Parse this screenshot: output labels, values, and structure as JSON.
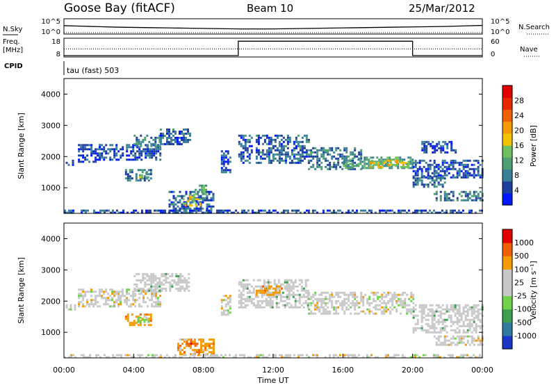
{
  "header": {
    "station": "Goose Bay (fitACF)",
    "beam": "Beam 10",
    "date": "25/Mar/2012"
  },
  "labels": {
    "nsky": "N.Sky",
    "nsearch": "N.Search",
    "freq": "Freq.",
    "mhz": "[MHz]",
    "nave": "Nave",
    "cpid": "CPID",
    "cpid_value": "tau (fast) 503",
    "slant_range": "Slant Range [km]",
    "time_ut": "Time UT",
    "power_label": "Power [dB]",
    "velocity_label": "Velocity [m s⁻¹]"
  },
  "strip": {
    "noise_ticks_left": [
      "10^5",
      "10^0"
    ],
    "noise_ticks_right": [
      "10^5",
      "10^0"
    ],
    "freq_ticks": [
      "18",
      "8"
    ],
    "nave_ticks": [
      "60",
      "0"
    ]
  },
  "colors": {
    "power": [
      "#0018ff",
      "#1e3f9e",
      "#3a7e9a",
      "#4e9e74",
      "#6fc060",
      "#f2c400",
      "#f39a00",
      "#f06000",
      "#e62800",
      "#e00000"
    ],
    "velocity": [
      "#e00000",
      "#f06000",
      "#f39a00",
      "#c8c8c8",
      "#c8c8c8",
      "#6fd24a",
      "#3c9e4e",
      "#2f7a9e",
      "#1a35c8"
    ]
  },
  "chart_data": [
    {
      "type": "line",
      "panel": "noise",
      "series": [
        {
          "name": "N.Sky",
          "x_hours": [
            0,
            1,
            2,
            3,
            4,
            5,
            6,
            7,
            8,
            9,
            10,
            11,
            12,
            13,
            14,
            15,
            16,
            17,
            18,
            19,
            20,
            21,
            22,
            23,
            24
          ],
          "values_log10": [
            2.8,
            2.6,
            2.4,
            2.2,
            2.1,
            2.0,
            1.9,
            1.8,
            1.7,
            1.6,
            1.5,
            1.5,
            1.5,
            1.6,
            1.7,
            1.8,
            1.9,
            2.0,
            2.1,
            2.2,
            2.3,
            2.4,
            2.5,
            2.7,
            2.9
          ]
        },
        {
          "name": "N.Search",
          "x_hours": [
            0,
            24
          ],
          "values_log10": [
            0,
            0
          ]
        }
      ],
      "ylim_log10": [
        0,
        5
      ]
    },
    {
      "type": "line",
      "panel": "freq_nave",
      "series": [
        {
          "name": "Freq.",
          "x_hours": [
            0,
            10,
            10,
            20,
            20,
            24
          ],
          "values": [
            8,
            8,
            17,
            17,
            8,
            8
          ]
        },
        {
          "name": "Nave",
          "x_hours": [
            0,
            24
          ],
          "values": [
            25,
            25
          ]
        }
      ],
      "freq_lim": [
        8,
        18
      ],
      "nave_lim": [
        0,
        60
      ]
    },
    {
      "type": "heatmap",
      "panel": "power",
      "xlabel": "",
      "ylabel": "Slant Range [km]",
      "xlim_hours": [
        0,
        24
      ],
      "ylim_km": [
        180,
        4500
      ],
      "y_ticks": [
        1000,
        2000,
        3000,
        4000
      ],
      "colorbar_label": "Power [dB]",
      "colorbar_ticks": [
        4,
        8,
        12,
        16,
        20,
        24,
        28
      ],
      "clim": [
        0,
        30
      ],
      "regions": [
        {
          "t0": 0.1,
          "t1": 0.6,
          "r0": 1700,
          "r1": 1900,
          "level": 3
        },
        {
          "t0": 0.8,
          "t1": 2.0,
          "r0": 1800,
          "r1": 2400,
          "level": 4
        },
        {
          "t0": 2.0,
          "t1": 5.5,
          "r0": 1900,
          "r1": 2400,
          "level": 5
        },
        {
          "t0": 4.0,
          "t1": 5.5,
          "r0": 2300,
          "r1": 2700,
          "level": 8
        },
        {
          "t0": 5.5,
          "t1": 7.2,
          "r0": 2400,
          "r1": 2900,
          "level": 6
        },
        {
          "t0": 3.5,
          "t1": 5.0,
          "r0": 1250,
          "r1": 1600,
          "level": 7
        },
        {
          "t0": 4.3,
          "t1": 5.0,
          "r0": 1300,
          "r1": 1500,
          "level": 13
        },
        {
          "t0": 6.0,
          "t1": 8.6,
          "r0": 200,
          "r1": 900,
          "level": 6
        },
        {
          "t0": 6.8,
          "t1": 7.8,
          "r0": 450,
          "r1": 800,
          "level": 15
        },
        {
          "t0": 7.5,
          "t1": 8.2,
          "r0": 800,
          "r1": 1100,
          "level": 11
        },
        {
          "t0": 9.0,
          "t1": 9.5,
          "r0": 1500,
          "r1": 2200,
          "level": 5
        },
        {
          "t0": 10.0,
          "t1": 10.8,
          "r0": 1800,
          "r1": 2700,
          "level": 6
        },
        {
          "t0": 11.0,
          "t1": 14.0,
          "r0": 1800,
          "r1": 2700,
          "level": 6
        },
        {
          "t0": 14.0,
          "t1": 17.0,
          "r0": 1600,
          "r1": 2300,
          "level": 7
        },
        {
          "t0": 16.0,
          "t1": 20.0,
          "r0": 1600,
          "r1": 2000,
          "level": 10
        },
        {
          "t0": 17.5,
          "t1": 19.7,
          "r0": 1650,
          "r1": 1900,
          "level": 16
        },
        {
          "t0": 20.0,
          "t1": 21.8,
          "r0": 1000,
          "r1": 1400,
          "level": 7
        },
        {
          "t0": 20.0,
          "t1": 24.0,
          "r0": 1300,
          "r1": 1900,
          "level": 5
        },
        {
          "t0": 20.5,
          "t1": 22.5,
          "r0": 2100,
          "r1": 2500,
          "level": 5
        },
        {
          "t0": 21.2,
          "t1": 24.0,
          "r0": 600,
          "r1": 900,
          "level": 8
        },
        {
          "t0": 0.0,
          "t1": 24.0,
          "r0": 180,
          "r1": 300,
          "level": 5
        }
      ]
    },
    {
      "type": "heatmap",
      "panel": "velocity",
      "xlabel": "Time UT",
      "ylabel": "Slant Range [km]",
      "xlim_hours": [
        0,
        24
      ],
      "ylim_km": [
        180,
        4500
      ],
      "x_ticks": [
        "00:00",
        "04:00",
        "08:00",
        "12:00",
        "16:00",
        "20:00",
        "00:00"
      ],
      "y_ticks": [
        1000,
        2000,
        3000,
        4000
      ],
      "colorbar_label": "Velocity [m s⁻¹]",
      "colorbar_ticks": [
        1000,
        500,
        100,
        25,
        -25,
        -100,
        -500,
        -1000
      ],
      "regions": [
        {
          "t0": 0.1,
          "t1": 0.6,
          "r0": 1700,
          "r1": 1900,
          "level": 3
        },
        {
          "t0": 0.8,
          "t1": 5.5,
          "r0": 1800,
          "r1": 2400,
          "level": 3
        },
        {
          "t0": 4.0,
          "t1": 7.2,
          "r0": 2300,
          "r1": 2900,
          "level": 4
        },
        {
          "t0": 3.5,
          "t1": 5.0,
          "r0": 1250,
          "r1": 1600,
          "level": 2
        },
        {
          "t0": 4.2,
          "t1": 5.0,
          "r0": 1300,
          "r1": 1500,
          "level": 5
        },
        {
          "t0": 6.5,
          "t1": 8.6,
          "r0": 300,
          "r1": 800,
          "level": 2
        },
        {
          "t0": 7.0,
          "t1": 7.8,
          "r0": 550,
          "r1": 800,
          "level": 1
        },
        {
          "t0": 9.0,
          "t1": 9.5,
          "r0": 1500,
          "r1": 2200,
          "level": 3
        },
        {
          "t0": 10.0,
          "t1": 14.0,
          "r0": 1800,
          "r1": 2700,
          "level": 4
        },
        {
          "t0": 14.0,
          "t1": 20.0,
          "r0": 1600,
          "r1": 2300,
          "level": 3
        },
        {
          "t0": 20.0,
          "t1": 24.0,
          "r0": 1000,
          "r1": 1900,
          "level": 4
        },
        {
          "t0": 21.2,
          "t1": 24.0,
          "r0": 600,
          "r1": 900,
          "level": 3
        },
        {
          "t0": 11.0,
          "t1": 12.5,
          "r0": 2200,
          "r1": 2500,
          "level": 2
        },
        {
          "t0": 0.0,
          "t1": 24.0,
          "r0": 180,
          "r1": 300,
          "level": 3
        }
      ]
    }
  ]
}
